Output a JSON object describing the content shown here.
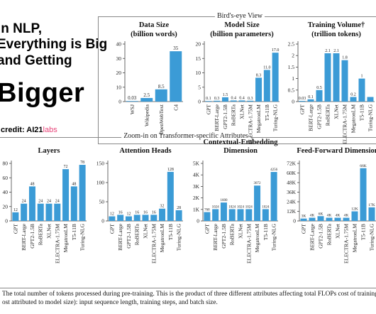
{
  "poster": {
    "line1": "In NLP,",
    "line2": "Everything is Big",
    "line3": "and Getting",
    "line4": "Bigger",
    "credit_label": "credit:",
    "credit_brand": "AI21",
    "credit_labs": "labs"
  },
  "sections": {
    "top_title": "Bird's-eye View",
    "bottom_title": "Zoom-in on Transformer-specific Attributes"
  },
  "footnote": {
    "line1": "The total number of tokens processed during pre-training. This is the product of three different attributes affecting total FLOPs cost of training (beyond th",
    "line2": "ost attributed to model size): input sequence length, training steps, and batch size."
  },
  "colors": {
    "bar": "#3b9bd6",
    "axis": "#444444",
    "frame": "#888888"
  },
  "chart_data": [
    {
      "type": "bar",
      "title": "Data Size",
      "subtitle": "(billion words)",
      "categories": [
        "WSJ",
        "Wikipedia",
        "OpenWebText",
        "C4"
      ],
      "values": [
        0.03,
        2.5,
        8.5,
        35
      ],
      "labels": [
        "0.03",
        "2.5",
        "8.5",
        "35"
      ],
      "yticks": [
        "0",
        "10",
        "20",
        "30",
        "40"
      ],
      "ytick_values": [
        0,
        10,
        20,
        30,
        40
      ],
      "ylim": [
        0,
        40
      ],
      "grid": false
    },
    {
      "type": "bar",
      "title": "Model Size",
      "subtitle": "(billion parameters)",
      "categories": [
        "GPT",
        "BERT-Large",
        "GPT2-1.5B",
        "RoBERTa",
        "XLNet",
        "ELECTRA-1.75M",
        "MegatronLM",
        "T5-11B",
        "Turing-NLG"
      ],
      "values": [
        0.1,
        0.3,
        1.5,
        0.4,
        0.4,
        0.3,
        8.3,
        11.0,
        17.0
      ],
      "labels": [
        "0.1",
        "0.3",
        "1.5",
        "0.4",
        "0.4",
        "0.3",
        "8.3",
        "11.0",
        "17.0"
      ],
      "yticks": [
        "0",
        "5",
        "10",
        "15",
        "20"
      ],
      "ytick_values": [
        0,
        5,
        10,
        15,
        20
      ],
      "ylim": [
        0,
        20
      ],
      "grid": false
    },
    {
      "type": "bar",
      "title": "Training Volume†",
      "subtitle": "(trillion tokens)",
      "categories": [
        "GPT",
        "BERT-Large",
        "GPT2-1.5B",
        "RoBERTa",
        "XLNet",
        "ELECTRA-1.75M",
        "MegatronLM",
        "T5-11B",
        "Turing-NLG"
      ],
      "values": [
        0.03,
        0.1,
        0.5,
        2.1,
        2.1,
        1.8,
        0.2,
        1,
        0.2
      ],
      "labels": [
        "0.03",
        "0.1",
        "0.5",
        "2.1",
        "2.1",
        "1.8",
        "0.2",
        "1",
        ""
      ],
      "yticks": [
        "0",
        "0.5",
        "1",
        "1.5",
        "2",
        "2.5"
      ],
      "ytick_values": [
        0,
        0.5,
        1,
        1.5,
        2,
        2.5
      ],
      "ylim": [
        0,
        2.5
      ],
      "grid": false
    },
    {
      "type": "bar",
      "title": "Layers",
      "subtitle": "",
      "categories": [
        "GPT",
        "BERT-Large",
        "GPT2-1.5B",
        "RoBERTa",
        "XLNet",
        "ELECTRA-1.75M",
        "MegatronLM",
        "T5-11B",
        "Turing-NLG"
      ],
      "values": [
        12,
        24,
        48,
        24,
        24,
        24,
        72,
        48,
        78
      ],
      "labels": [
        "12",
        "24",
        "48",
        "24",
        "24",
        "24",
        "72",
        "48",
        "78"
      ],
      "yticks": [
        "0",
        "20",
        "40",
        "60",
        "80"
      ],
      "ytick_values": [
        0,
        20,
        40,
        60,
        80
      ],
      "ylim": [
        0,
        80
      ],
      "grid": false
    },
    {
      "type": "bar",
      "title": "Attention Heads",
      "subtitle": "",
      "categories": [
        "GPT",
        "BERT-Large",
        "GPT2-1.5B",
        "RoBERTa",
        "XLNet",
        "ELECTRA-1.75M",
        "MegatronLM",
        "T5-11B",
        "Turing-NLG"
      ],
      "values": [
        12,
        16,
        12,
        16,
        16,
        16,
        32,
        128,
        28
      ],
      "labels": [
        "12",
        "16",
        "12",
        "16",
        "16",
        "16",
        "32",
        "128",
        "28"
      ],
      "yticks": [
        "0",
        "50",
        "100",
        "150"
      ],
      "ytick_values": [
        0,
        50,
        100,
        150
      ],
      "ylim": [
        0,
        150
      ],
      "grid": false
    },
    {
      "type": "bar",
      "title": "Contextual-Embedding",
      "subtitle": "Dimension",
      "categories": [
        "GPT",
        "BERT-Large",
        "GPT2-1.5B",
        "RoBERTa",
        "XLNet",
        "ELECTRA-1.75M",
        "MegatronLM",
        "T5-11B",
        "Turing-NLG"
      ],
      "values": [
        768,
        1024,
        1600,
        1024,
        1024,
        1024,
        3072,
        1024,
        4256
      ],
      "labels": [
        "768",
        "1024",
        "1600",
        "1024",
        "1024",
        "1024",
        "3072",
        "1024",
        "4256"
      ],
      "yticks": [
        "0",
        "1K",
        "2K",
        "3K",
        "4K",
        "5K"
      ],
      "ytick_values": [
        0,
        1000,
        2000,
        3000,
        4000,
        5000
      ],
      "ylim": [
        0,
        5000
      ],
      "grid": false
    },
    {
      "type": "bar",
      "title": "Feed-Forward Dimension",
      "subtitle": "",
      "categories": [
        "GPT",
        "BERT-Large",
        "GPT2-1.5B",
        "RoBERTa",
        "XLNet",
        "ELECTRA-1.75M",
        "MegatronLM",
        "T5-11B",
        "Turing-NLG"
      ],
      "values": [
        3000,
        4000,
        6000,
        4000,
        4000,
        4000,
        12000,
        66000,
        17000
      ],
      "labels": [
        "3K",
        "4K",
        "6K",
        "4K",
        "4K",
        "4K",
        "12K",
        "66K",
        "17K"
      ],
      "yticks": [
        "0",
        "12K",
        "24K",
        "36K",
        "48K",
        "60K",
        "72K"
      ],
      "ytick_values": [
        0,
        12000,
        24000,
        36000,
        48000,
        60000,
        72000
      ],
      "ylim": [
        0,
        72000
      ],
      "grid": false
    }
  ]
}
